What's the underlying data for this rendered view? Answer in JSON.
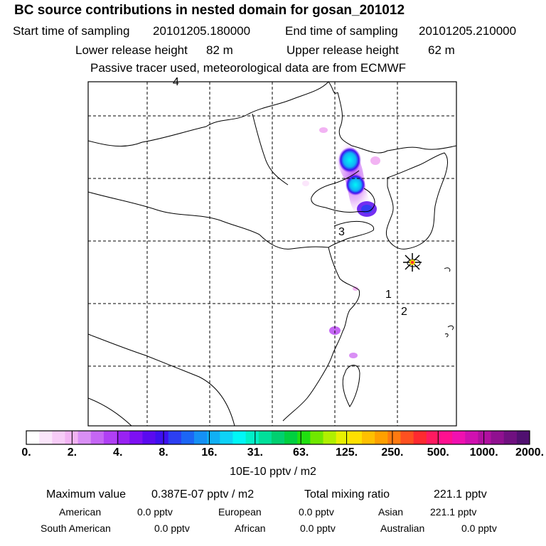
{
  "header": {
    "title": "BC  source contributions in nested domain for gosan_201012",
    "start_label": "Start time of sampling",
    "start_value": "20101205.180000",
    "end_label": "End time of sampling",
    "end_value": "20101205.210000",
    "lower_label": "Lower release height",
    "lower_value": "82 m",
    "upper_label": "Upper release height",
    "upper_value": "62 m",
    "tracer_note": "Passive tracer used, meteorological data are from ECMWF"
  },
  "map": {
    "region_labels": [
      "1",
      "2",
      "3",
      "4"
    ],
    "receptor_marker": "gosan-receptor-star-icon"
  },
  "colorbar": {
    "labels": [
      "0.",
      "2.",
      "4.",
      "8.",
      "16.",
      "31.",
      "63.",
      "125.",
      "250.",
      "500.",
      "1000.",
      "2000."
    ],
    "unit": "10E-10 pptv / m2",
    "colors": [
      "#ffffff",
      "#fbe6fb",
      "#f7ccf7",
      "#f2b3f3",
      "#d98ff5",
      "#c566f5",
      "#b040f5",
      "#9922f3",
      "#7d10f3",
      "#5a0af0",
      "#3d10f0",
      "#2c3ff2",
      "#1c66f5",
      "#1590f5",
      "#10b0f5",
      "#0ed2f7",
      "#00f7f7",
      "#00f0c8",
      "#00e09a",
      "#00d070",
      "#00d040",
      "#20e010",
      "#70e800",
      "#b0f000",
      "#e8f000",
      "#ffe000",
      "#ffc000",
      "#ffa000",
      "#ff7a10",
      "#ff5020",
      "#ff2a30",
      "#ff1a60",
      "#ff1090",
      "#f010b0",
      "#d010b0",
      "#b010a0",
      "#901090",
      "#701080",
      "#501070"
    ]
  },
  "summary": {
    "max_label": "Maximum value",
    "max_value": "0.387E-07 pptv / m2",
    "total_label": "Total mixing ratio",
    "total_value": "221.1 pptv",
    "american_label": "American",
    "american_value": "0.0 pptv",
    "european_label": "European",
    "european_value": "0.0 pptv",
    "asian_label": "Asian",
    "asian_value": "221.1 pptv",
    "south_american_label": "South American",
    "south_american_value": "0.0 pptv",
    "african_label": "African",
    "african_value": "0.0 pptv",
    "australian_label": "Australian",
    "australian_value": "0.0 pptv"
  }
}
